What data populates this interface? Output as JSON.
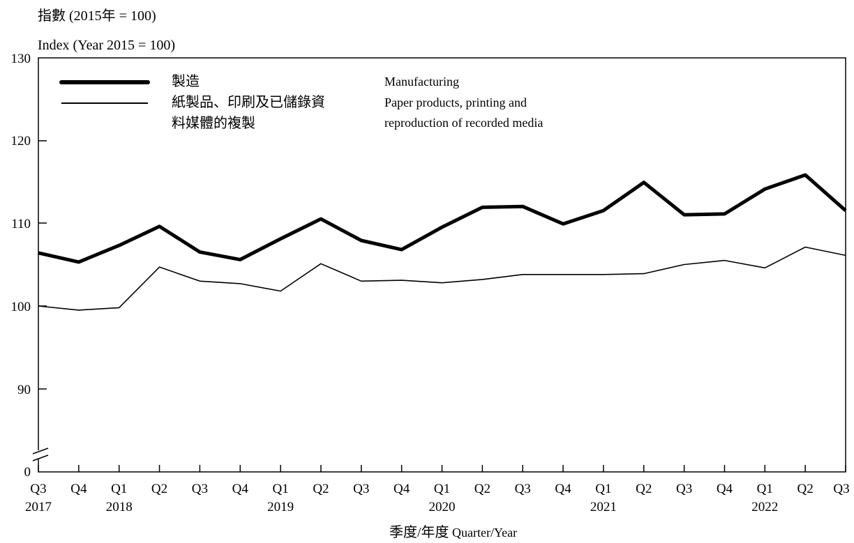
{
  "chart_data": {
    "type": "line",
    "ylabel_zh": "指數 (2015年 = 100)",
    "ylabel_en": "Index (Year 2015 = 100)",
    "xlabel_zh": "季度/年度",
    "xlabel_en": "Quarter/Year",
    "y_axis_break": true,
    "y_ticks": [
      "0",
      "90",
      "100",
      "110",
      "120",
      "130"
    ],
    "ylim": [
      80,
      130
    ],
    "grid": false,
    "legend_position": "top-left",
    "categories": [
      "Q3",
      "Q4",
      "Q1",
      "Q2",
      "Q3",
      "Q4",
      "Q1",
      "Q2",
      "Q3",
      "Q4",
      "Q1",
      "Q2",
      "Q3",
      "Q4",
      "Q1",
      "Q2",
      "Q3",
      "Q4",
      "Q1",
      "Q2",
      "Q3"
    ],
    "year_labels": [
      {
        "index": 0,
        "label": "2017"
      },
      {
        "index": 2,
        "label": "2018"
      },
      {
        "index": 6,
        "label": "2019"
      },
      {
        "index": 10,
        "label": "2020"
      },
      {
        "index": 14,
        "label": "2021"
      },
      {
        "index": 18,
        "label": "2022"
      }
    ],
    "series": [
      {
        "name_zh": "製造",
        "name_en": "Manufacturing",
        "style": "thick",
        "values": [
          106.4,
          105.3,
          107.3,
          109.6,
          106.5,
          105.6,
          108.1,
          110.5,
          107.9,
          106.8,
          109.5,
          111.9,
          112.0,
          109.9,
          111.5,
          114.9,
          111.0,
          111.1,
          114.1,
          115.8,
          111.5
        ]
      },
      {
        "name_zh": [
          "紙製品、印刷及已儲錄資",
          "料媒體的複製"
        ],
        "name_en": [
          "Paper products, printing and",
          "reproduction of recorded media"
        ],
        "style": "thin",
        "values": [
          100.0,
          99.5,
          99.8,
          104.7,
          103.0,
          102.7,
          101.8,
          105.1,
          103.0,
          103.1,
          102.8,
          103.2,
          103.8,
          103.8,
          103.8,
          103.9,
          105.0,
          105.5,
          104.6,
          107.1,
          106.1
        ]
      }
    ]
  }
}
